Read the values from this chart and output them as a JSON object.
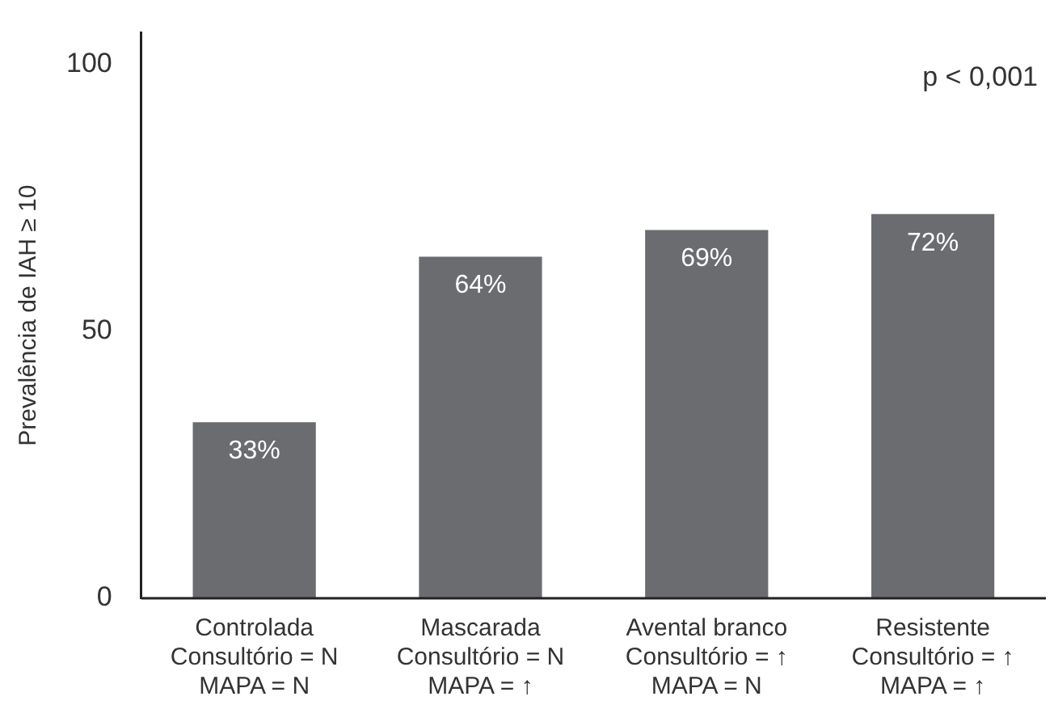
{
  "chart_data": {
    "type": "bar",
    "ylabel": "Prevalência de IAH ≥ 10",
    "categories": [
      "Controlada\nConsultório = N\nMAPA = N",
      "Mascarada\nConsultório = N\nMAPA = ↑",
      "Avental branco\nConsultório = ↑\nMAPA = N",
      "Resistente\nConsultório = ↑\nMAPA = ↑"
    ],
    "values": [
      33,
      64,
      69,
      72
    ],
    "value_labels": [
      "33%",
      "64%",
      "69%",
      "72%"
    ],
    "color": "#6b6c70",
    "ylim": [
      0,
      106
    ],
    "yticks": [
      0,
      50,
      100
    ],
    "grid": false,
    "legend": false,
    "annotations": [
      "p < 0,001"
    ]
  }
}
